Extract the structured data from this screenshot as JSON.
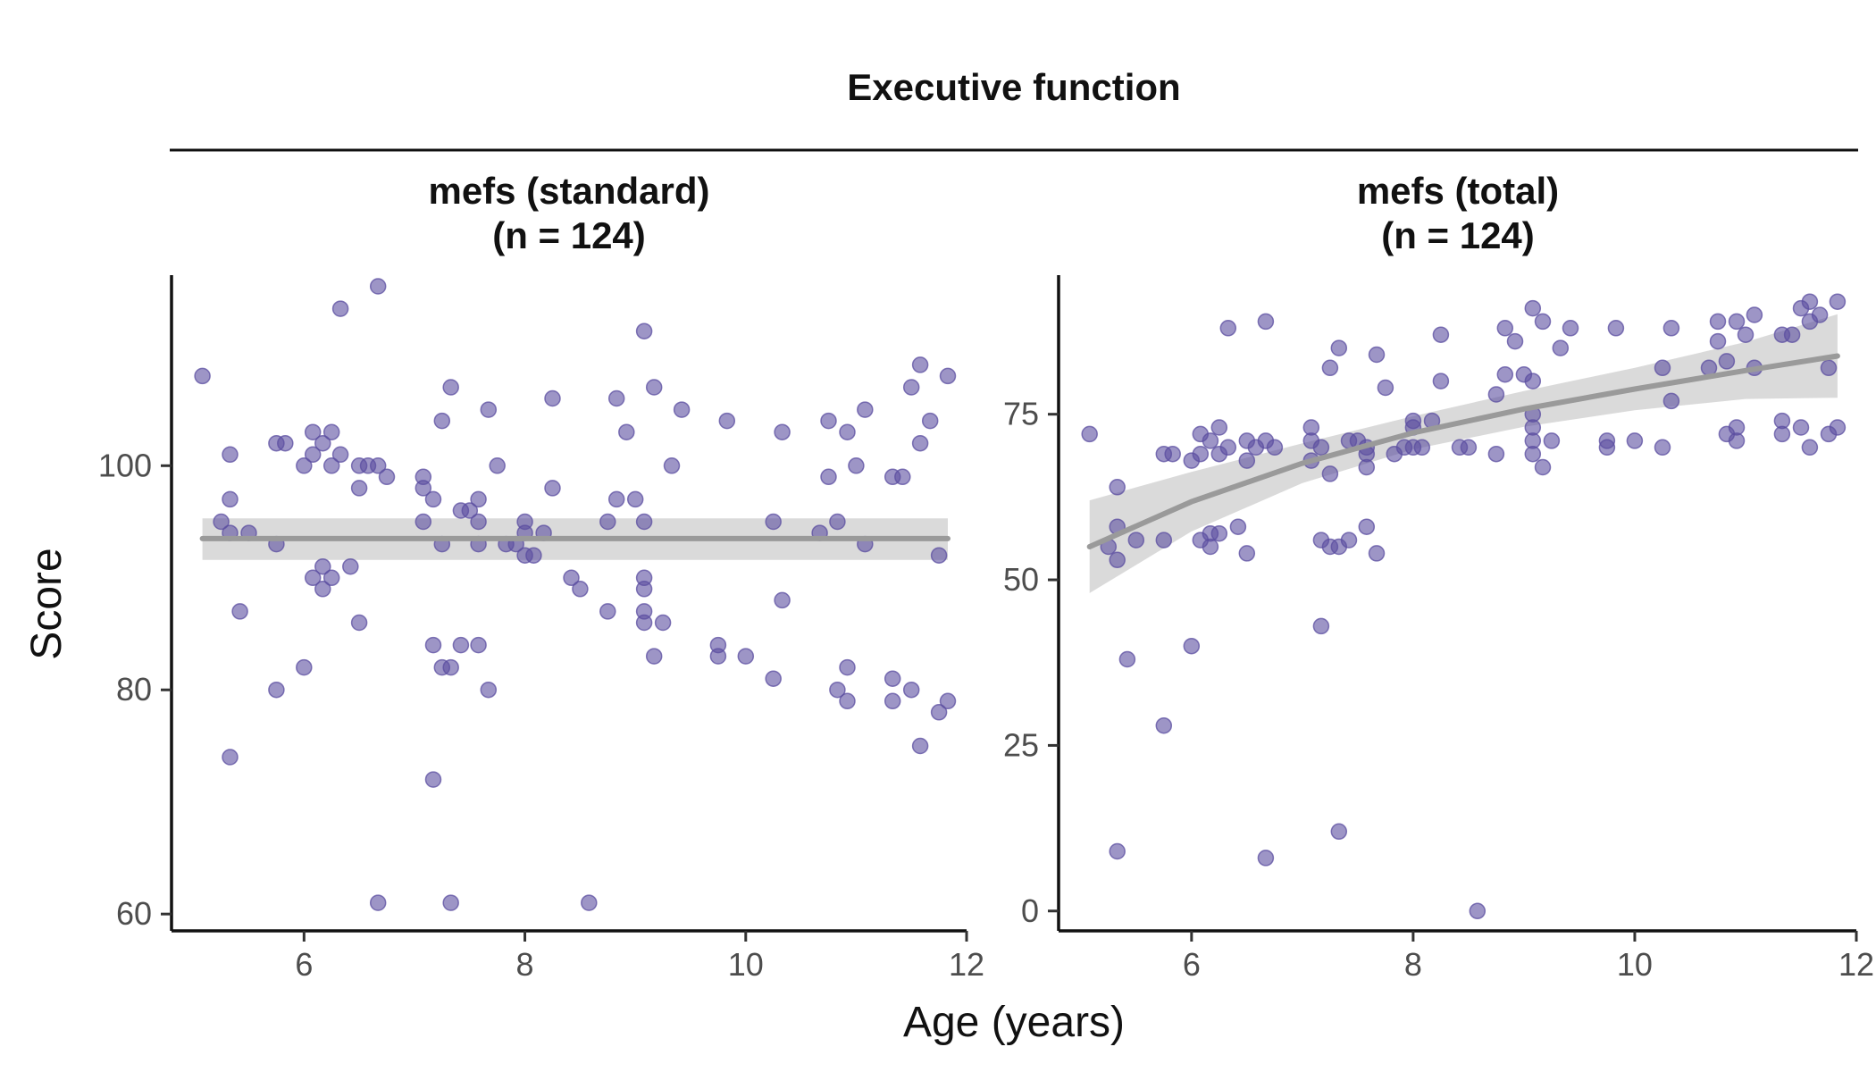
{
  "figure": {
    "title": "Executive function",
    "xlabel": "Age (years)",
    "ylabel": "Score",
    "point_color": "#5b4ea0",
    "fit_color": "#9a9a9a",
    "ribbon_color": "#d4d4d4"
  },
  "chart_data": [
    {
      "type": "scatter",
      "panel_title": "mefs (standard)",
      "panel_subtitle": "(n = 124)",
      "xlabel": "Age (years)",
      "ylabel": "Score",
      "xlim": [
        4.8,
        12
      ],
      "ylim": [
        58.5,
        117
      ],
      "xticks": [
        6,
        8,
        10,
        12
      ],
      "yticks": [
        60,
        80,
        100
      ],
      "grid": false,
      "points": [
        [
          5.08,
          108
        ],
        [
          5.25,
          95
        ],
        [
          5.33,
          101
        ],
        [
          5.33,
          97
        ],
        [
          5.33,
          74
        ],
        [
          5.42,
          87
        ],
        [
          5.5,
          94
        ],
        [
          5.33,
          94
        ],
        [
          5.75,
          102
        ],
        [
          5.75,
          93
        ],
        [
          5.75,
          80
        ],
        [
          5.83,
          102
        ],
        [
          6.0,
          100
        ],
        [
          6.0,
          82
        ],
        [
          6.08,
          103
        ],
        [
          6.08,
          101
        ],
        [
          6.08,
          90
        ],
        [
          6.17,
          102
        ],
        [
          6.17,
          91
        ],
        [
          6.17,
          89
        ],
        [
          6.25,
          103
        ],
        [
          6.25,
          100
        ],
        [
          6.25,
          90
        ],
        [
          6.33,
          114
        ],
        [
          6.33,
          101
        ],
        [
          6.42,
          91
        ],
        [
          6.5,
          100
        ],
        [
          6.5,
          98
        ],
        [
          6.5,
          86
        ],
        [
          6.58,
          100
        ],
        [
          6.67,
          116
        ],
        [
          6.67,
          100
        ],
        [
          6.67,
          61
        ],
        [
          6.75,
          99
        ],
        [
          7.08,
          99
        ],
        [
          7.08,
          98
        ],
        [
          7.08,
          95
        ],
        [
          7.17,
          97
        ],
        [
          7.17,
          84
        ],
        [
          7.17,
          72
        ],
        [
          7.25,
          104
        ],
        [
          7.25,
          93
        ],
        [
          7.25,
          82
        ],
        [
          7.33,
          107
        ],
        [
          7.33,
          82
        ],
        [
          7.33,
          61
        ],
        [
          7.42,
          96
        ],
        [
          7.42,
          84
        ],
        [
          7.5,
          96
        ],
        [
          7.58,
          97
        ],
        [
          7.58,
          95
        ],
        [
          7.58,
          93
        ],
        [
          7.58,
          84
        ],
        [
          7.67,
          105
        ],
        [
          7.67,
          80
        ],
        [
          7.75,
          100
        ],
        [
          7.83,
          93
        ],
        [
          7.92,
          93
        ],
        [
          8.0,
          95
        ],
        [
          8.0,
          94
        ],
        [
          8.0,
          92
        ],
        [
          8.08,
          92
        ],
        [
          8.17,
          94
        ],
        [
          8.25,
          106
        ],
        [
          8.25,
          98
        ],
        [
          8.42,
          90
        ],
        [
          8.5,
          89
        ],
        [
          8.58,
          61
        ],
        [
          8.75,
          95
        ],
        [
          8.75,
          87
        ],
        [
          8.83,
          106
        ],
        [
          8.83,
          97
        ],
        [
          8.92,
          103
        ],
        [
          9.0,
          97
        ],
        [
          9.08,
          112
        ],
        [
          9.08,
          95
        ],
        [
          9.08,
          89
        ],
        [
          9.08,
          87
        ],
        [
          9.08,
          86
        ],
        [
          9.08,
          90
        ],
        [
          9.17,
          107
        ],
        [
          9.17,
          83
        ],
        [
          9.25,
          86
        ],
        [
          9.33,
          100
        ],
        [
          9.42,
          105
        ],
        [
          9.75,
          84
        ],
        [
          9.75,
          83
        ],
        [
          9.83,
          104
        ],
        [
          10.0,
          83
        ],
        [
          10.25,
          95
        ],
        [
          10.25,
          81
        ],
        [
          10.33,
          103
        ],
        [
          10.33,
          88
        ],
        [
          10.67,
          94
        ],
        [
          10.75,
          104
        ],
        [
          10.75,
          99
        ],
        [
          10.83,
          95
        ],
        [
          10.83,
          80
        ],
        [
          10.92,
          103
        ],
        [
          10.92,
          82
        ],
        [
          10.92,
          79
        ],
        [
          11.0,
          100
        ],
        [
          11.08,
          93
        ],
        [
          11.08,
          105
        ],
        [
          11.33,
          99
        ],
        [
          11.33,
          81
        ],
        [
          11.33,
          79
        ],
        [
          11.42,
          99
        ],
        [
          11.5,
          107
        ],
        [
          11.5,
          80
        ],
        [
          11.58,
          109
        ],
        [
          11.58,
          102
        ],
        [
          11.58,
          75
        ],
        [
          11.67,
          104
        ],
        [
          11.75,
          92
        ],
        [
          11.75,
          78
        ],
        [
          11.83,
          108
        ],
        [
          11.83,
          79
        ]
      ],
      "fit": {
        "x": [
          5.08,
          11.83
        ],
        "y": [
          93.5,
          93.5
        ],
        "ci_lower": [
          91.6,
          91.6
        ],
        "ci_upper": [
          95.3,
          95.3
        ]
      }
    },
    {
      "type": "scatter",
      "panel_title": "mefs (total)",
      "panel_subtitle": "(n = 124)",
      "xlabel": "Age (years)",
      "ylabel": "Score",
      "xlim": [
        4.8,
        12
      ],
      "ylim": [
        -3,
        96
      ],
      "xticks": [
        6,
        8,
        10,
        12
      ],
      "yticks": [
        0,
        25,
        50,
        75
      ],
      "grid": false,
      "points": [
        [
          5.08,
          72
        ],
        [
          5.25,
          55
        ],
        [
          5.33,
          64
        ],
        [
          5.33,
          58
        ],
        [
          5.33,
          53
        ],
        [
          5.33,
          9
        ],
        [
          5.42,
          38
        ],
        [
          5.5,
          56
        ],
        [
          5.75,
          69
        ],
        [
          5.75,
          56
        ],
        [
          5.75,
          28
        ],
        [
          5.83,
          69
        ],
        [
          6.0,
          68
        ],
        [
          6.0,
          40
        ],
        [
          6.08,
          72
        ],
        [
          6.08,
          69
        ],
        [
          6.08,
          56
        ],
        [
          6.17,
          71
        ],
        [
          6.17,
          57
        ],
        [
          6.17,
          55
        ],
        [
          6.25,
          73
        ],
        [
          6.25,
          69
        ],
        [
          6.25,
          57
        ],
        [
          6.33,
          88
        ],
        [
          6.33,
          70
        ],
        [
          6.42,
          58
        ],
        [
          6.5,
          71
        ],
        [
          6.5,
          68
        ],
        [
          6.5,
          54
        ],
        [
          6.58,
          70
        ],
        [
          6.67,
          89
        ],
        [
          6.67,
          71
        ],
        [
          6.67,
          8
        ],
        [
          6.75,
          70
        ],
        [
          7.08,
          73
        ],
        [
          7.08,
          71
        ],
        [
          7.08,
          68
        ],
        [
          7.17,
          70
        ],
        [
          7.17,
          56
        ],
        [
          7.17,
          43
        ],
        [
          7.25,
          82
        ],
        [
          7.25,
          66
        ],
        [
          7.25,
          55
        ],
        [
          7.33,
          85
        ],
        [
          7.33,
          55
        ],
        [
          7.33,
          12
        ],
        [
          7.42,
          71
        ],
        [
          7.42,
          56
        ],
        [
          7.5,
          71
        ],
        [
          7.58,
          70
        ],
        [
          7.58,
          69
        ],
        [
          7.58,
          67
        ],
        [
          7.58,
          58
        ],
        [
          7.67,
          84
        ],
        [
          7.67,
          54
        ],
        [
          7.75,
          79
        ],
        [
          7.83,
          69
        ],
        [
          7.92,
          70
        ],
        [
          8.0,
          74
        ],
        [
          8.0,
          73
        ],
        [
          8.0,
          70
        ],
        [
          8.08,
          70
        ],
        [
          8.17,
          74
        ],
        [
          8.25,
          87
        ],
        [
          8.25,
          80
        ],
        [
          8.42,
          70
        ],
        [
          8.5,
          70
        ],
        [
          8.58,
          0
        ],
        [
          8.75,
          78
        ],
        [
          8.75,
          69
        ],
        [
          8.83,
          88
        ],
        [
          8.83,
          81
        ],
        [
          8.92,
          86
        ],
        [
          9.0,
          81
        ],
        [
          9.08,
          91
        ],
        [
          9.08,
          80
        ],
        [
          9.08,
          75
        ],
        [
          9.08,
          73
        ],
        [
          9.08,
          71
        ],
        [
          9.08,
          69
        ],
        [
          9.17,
          89
        ],
        [
          9.17,
          67
        ],
        [
          9.25,
          71
        ],
        [
          9.33,
          85
        ],
        [
          9.42,
          88
        ],
        [
          9.75,
          71
        ],
        [
          9.75,
          70
        ],
        [
          9.83,
          88
        ],
        [
          10.0,
          71
        ],
        [
          10.25,
          82
        ],
        [
          10.25,
          70
        ],
        [
          10.33,
          88
        ],
        [
          10.33,
          77
        ],
        [
          10.67,
          82
        ],
        [
          10.75,
          89
        ],
        [
          10.75,
          86
        ],
        [
          10.83,
          83
        ],
        [
          10.83,
          72
        ],
        [
          10.92,
          89
        ],
        [
          10.92,
          73
        ],
        [
          10.92,
          71
        ],
        [
          11.0,
          87
        ],
        [
          11.08,
          82
        ],
        [
          11.08,
          90
        ],
        [
          11.33,
          87
        ],
        [
          11.33,
          74
        ],
        [
          11.33,
          72
        ],
        [
          11.42,
          87
        ],
        [
          11.5,
          91
        ],
        [
          11.5,
          73
        ],
        [
          11.58,
          92
        ],
        [
          11.58,
          89
        ],
        [
          11.58,
          70
        ],
        [
          11.67,
          90
        ],
        [
          11.75,
          82
        ],
        [
          11.75,
          72
        ],
        [
          11.83,
          92
        ],
        [
          11.83,
          73
        ]
      ],
      "fit": {
        "x": [
          5.08,
          6.0,
          7.0,
          8.0,
          9.0,
          10.0,
          11.0,
          11.83
        ],
        "y": [
          55.0,
          61.8,
          67.6,
          72.2,
          75.8,
          78.8,
          81.6,
          83.8
        ],
        "ci_lower": [
          48.0,
          57.3,
          64.6,
          69.7,
          73.1,
          75.6,
          77.3,
          77.5
        ],
        "ci_upper": [
          62.0,
          66.3,
          70.6,
          74.7,
          78.5,
          82.0,
          85.9,
          90.1
        ]
      }
    }
  ]
}
